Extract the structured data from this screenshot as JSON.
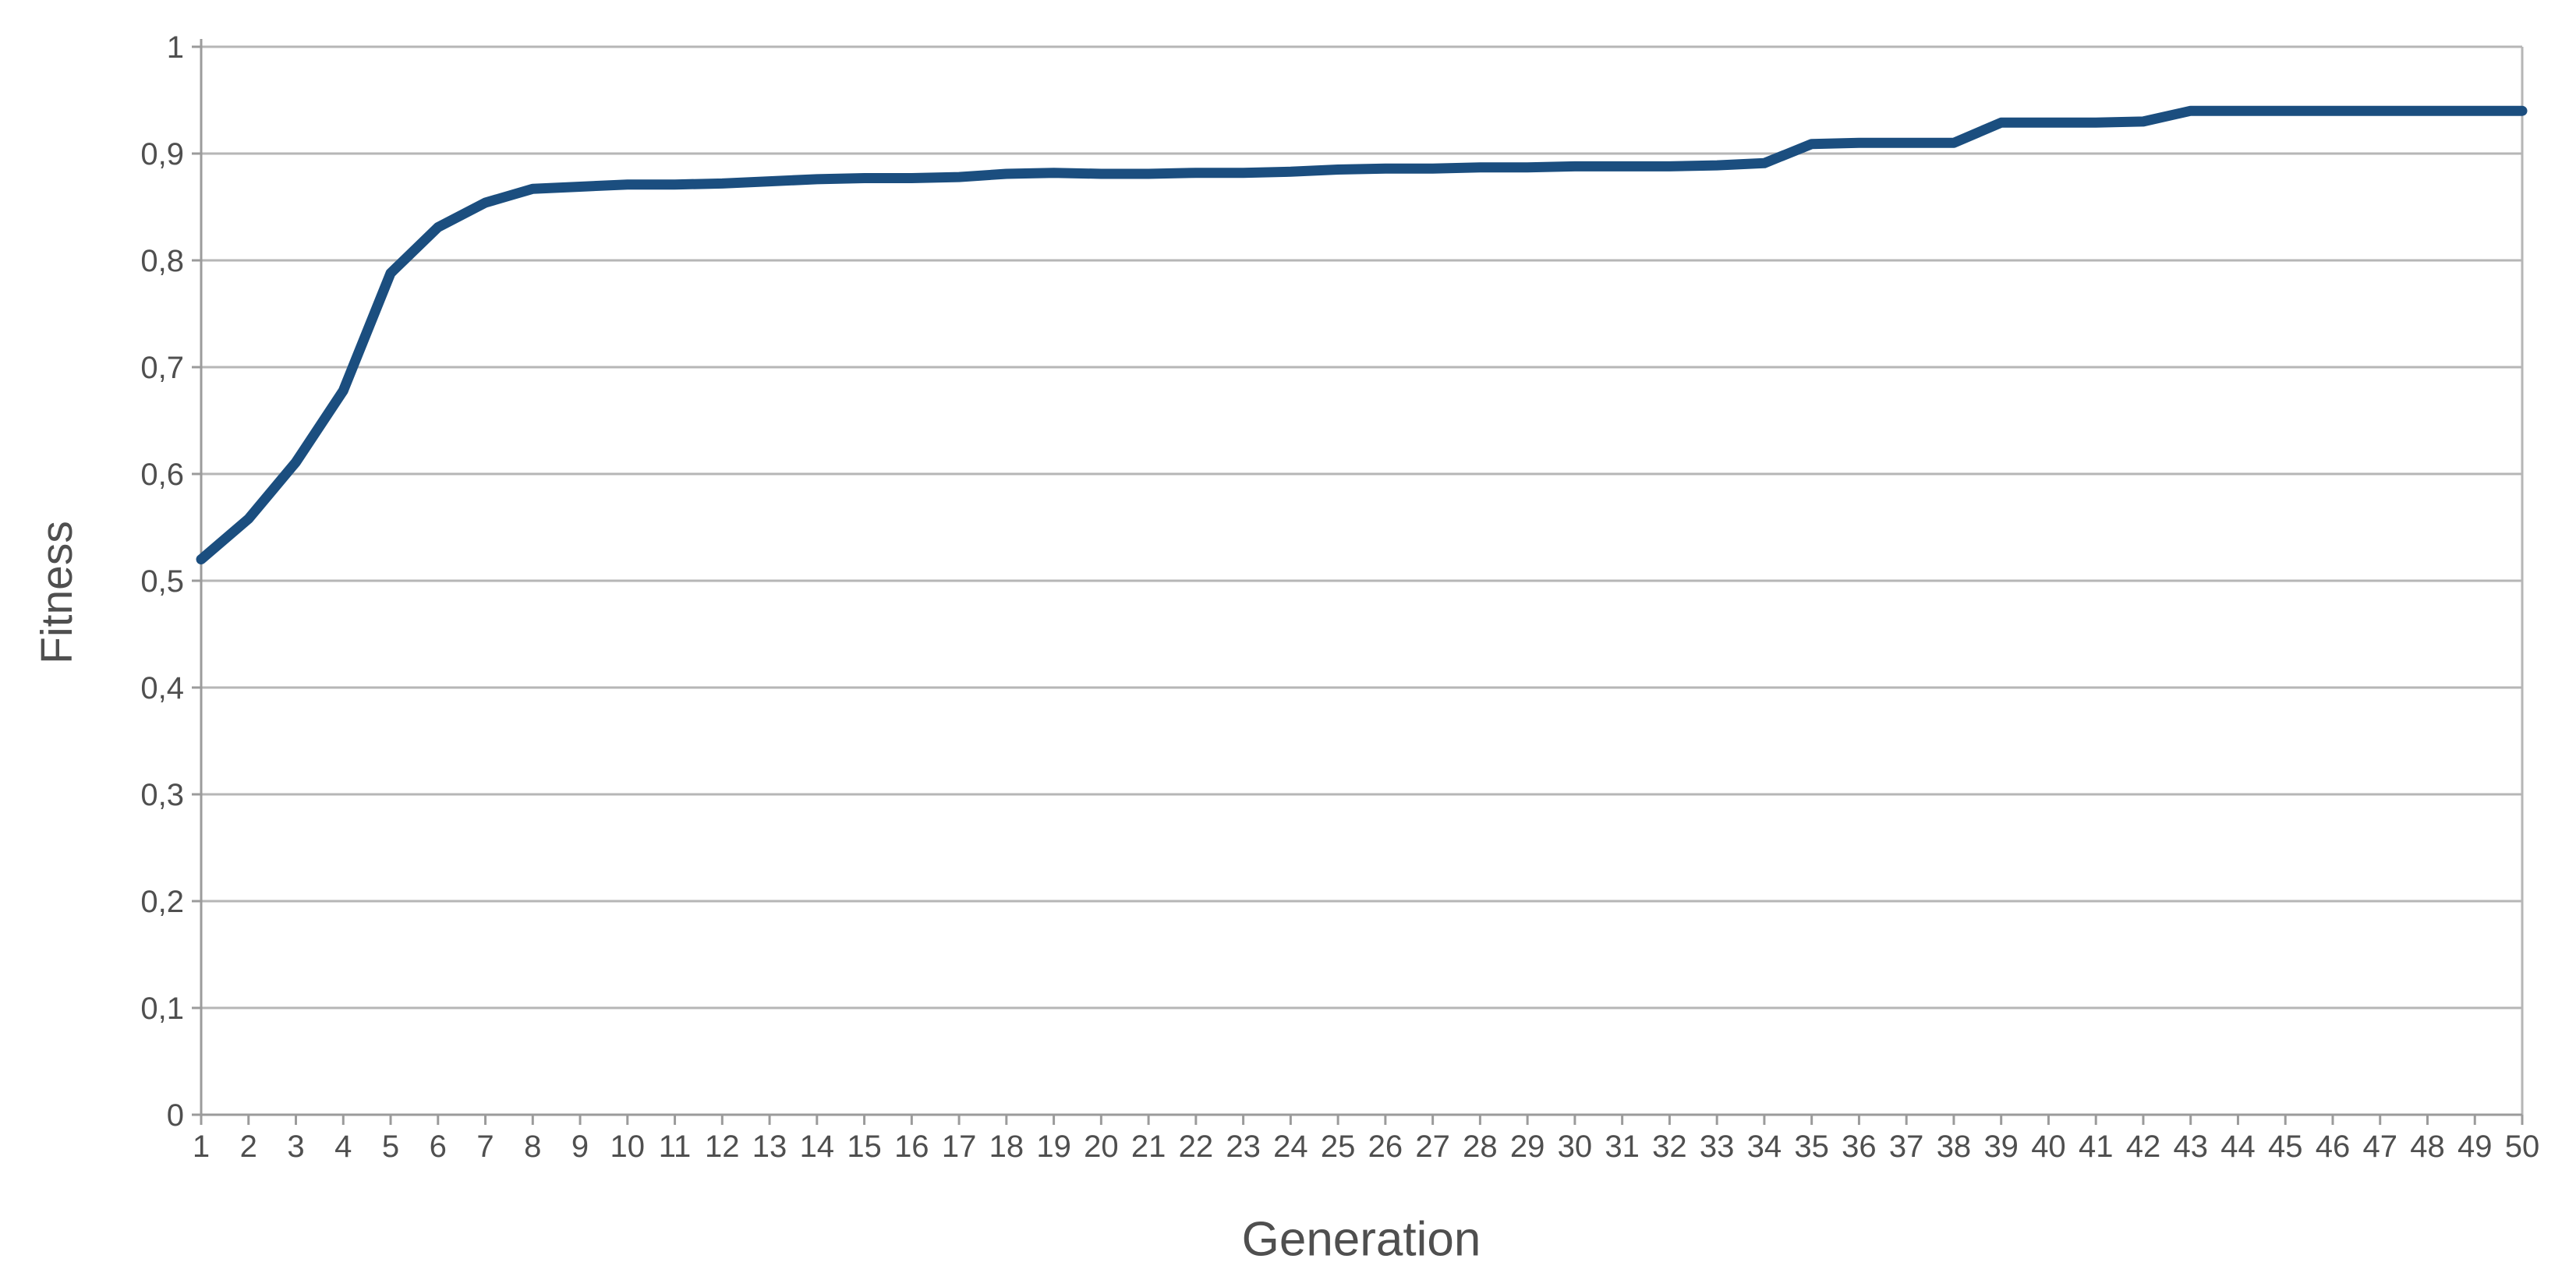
{
  "chart_data": {
    "type": "line",
    "title": "",
    "xlabel": "Generation",
    "ylabel": "Fitness",
    "categories": [
      "1",
      "2",
      "3",
      "4",
      "5",
      "6",
      "7",
      "8",
      "9",
      "10",
      "11",
      "12",
      "13",
      "14",
      "15",
      "16",
      "17",
      "18",
      "19",
      "20",
      "21",
      "22",
      "23",
      "24",
      "25",
      "26",
      "27",
      "28",
      "29",
      "30",
      "31",
      "32",
      "33",
      "34",
      "35",
      "36",
      "37",
      "38",
      "39",
      "40",
      "41",
      "42",
      "43",
      "44",
      "45",
      "46",
      "47",
      "48",
      "49",
      "50"
    ],
    "values": [
      0.52,
      0.558,
      0.611,
      0.678,
      0.788,
      0.831,
      0.854,
      0.867,
      0.869,
      0.871,
      0.871,
      0.872,
      0.874,
      0.876,
      0.877,
      0.877,
      0.878,
      0.881,
      0.882,
      0.881,
      0.881,
      0.882,
      0.882,
      0.883,
      0.885,
      0.886,
      0.886,
      0.887,
      0.887,
      0.888,
      0.888,
      0.888,
      0.889,
      0.891,
      0.909,
      0.91,
      0.91,
      0.91,
      0.929,
      0.929,
      0.929,
      0.93,
      0.94,
      0.94,
      0.94,
      0.94,
      0.94,
      0.94,
      0.94,
      0.94
    ],
    "ylim": [
      0,
      1
    ],
    "y_ticks": [
      {
        "label": "1",
        "value": 1.0
      },
      {
        "label": "0,9",
        "value": 0.9
      },
      {
        "label": "0,8",
        "value": 0.8
      },
      {
        "label": "0,7",
        "value": 0.7
      },
      {
        "label": "0,6",
        "value": 0.6
      },
      {
        "label": "0,5",
        "value": 0.5
      },
      {
        "label": "0,4",
        "value": 0.4
      },
      {
        "label": "0,3",
        "value": 0.3
      },
      {
        "label": "0,2",
        "value": 0.2
      },
      {
        "label": "0,1",
        "value": 0.1
      },
      {
        "label": "0",
        "value": 0.0
      }
    ],
    "grid": true,
    "legend": "none",
    "colors": {
      "line": "#1B4E7F",
      "gridline": "#b6b6b6",
      "axis": "#9b9b9b",
      "text": "#4f4f4f",
      "background": "#ffffff"
    }
  }
}
